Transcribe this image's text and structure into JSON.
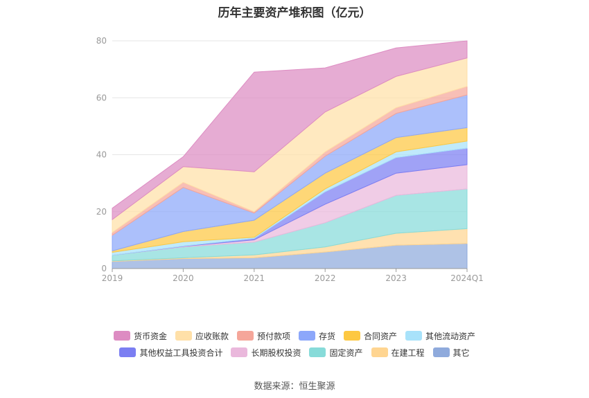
{
  "title": "历年主要资产堆积图（亿元）",
  "source": "数据来源：恒生聚源",
  "chart_data": {
    "type": "area",
    "stacked": true,
    "categories": [
      "2019",
      "2020",
      "2021",
      "2022",
      "2023",
      "2024Q1"
    ],
    "ylim": [
      0,
      80
    ],
    "yticks": [
      0,
      20,
      40,
      60,
      80
    ],
    "grid": true,
    "legend_position": "bottom",
    "series": [
      {
        "name": "其它",
        "color": "#8faadc",
        "values": [
          2.5,
          3.5,
          3.8,
          5.8,
          8.2,
          8.8
        ]
      },
      {
        "name": "在建工程",
        "color": "#ffd591",
        "values": [
          0.2,
          0.3,
          1.0,
          1.8,
          4.2,
          5.2
        ]
      },
      {
        "name": "固定资产",
        "color": "#87dbd9",
        "values": [
          2.0,
          3.8,
          4.5,
          8.5,
          13.3,
          14.0
        ]
      },
      {
        "name": "长期股权投资",
        "color": "#eab8dc",
        "values": [
          0.0,
          0.2,
          0.8,
          6.5,
          7.8,
          8.5
        ]
      },
      {
        "name": "其他权益工具投资合计",
        "color": "#7b7ef2",
        "values": [
          0.0,
          0.1,
          0.5,
          4.4,
          5.5,
          5.8
        ]
      },
      {
        "name": "其他流动资产",
        "color": "#a8e2fa",
        "values": [
          1.0,
          1.5,
          0.4,
          1.0,
          2.0,
          2.5
        ]
      },
      {
        "name": "合同资产",
        "color": "#fdc842",
        "values": [
          0.5,
          3.6,
          6.0,
          5.5,
          5.0,
          4.7
        ]
      },
      {
        "name": "存货",
        "color": "#8ca7fa",
        "values": [
          5.5,
          15.5,
          2.5,
          6.0,
          8.5,
          11.5
        ]
      },
      {
        "name": "预付款项",
        "color": "#f5a69a",
        "values": [
          1.0,
          1.8,
          0.5,
          1.5,
          2.0,
          3.0
        ]
      },
      {
        "name": "应收账款",
        "color": "#ffe0a8",
        "values": [
          4.5,
          5.5,
          14.0,
          14.0,
          11.0,
          10.0
        ]
      },
      {
        "name": "货币资金",
        "color": "#dd8cc2",
        "values": [
          4.0,
          3.5,
          35.0,
          15.5,
          10.0,
          6.0
        ]
      }
    ],
    "legend_rows": [
      [
        "货币资金",
        "应收账款",
        "预付款项",
        "存货",
        "合同资产",
        "其他流动资产"
      ],
      [
        "其他权益工具投资合计",
        "长期股权投资",
        "固定资产",
        "在建工程",
        "其它"
      ]
    ]
  }
}
